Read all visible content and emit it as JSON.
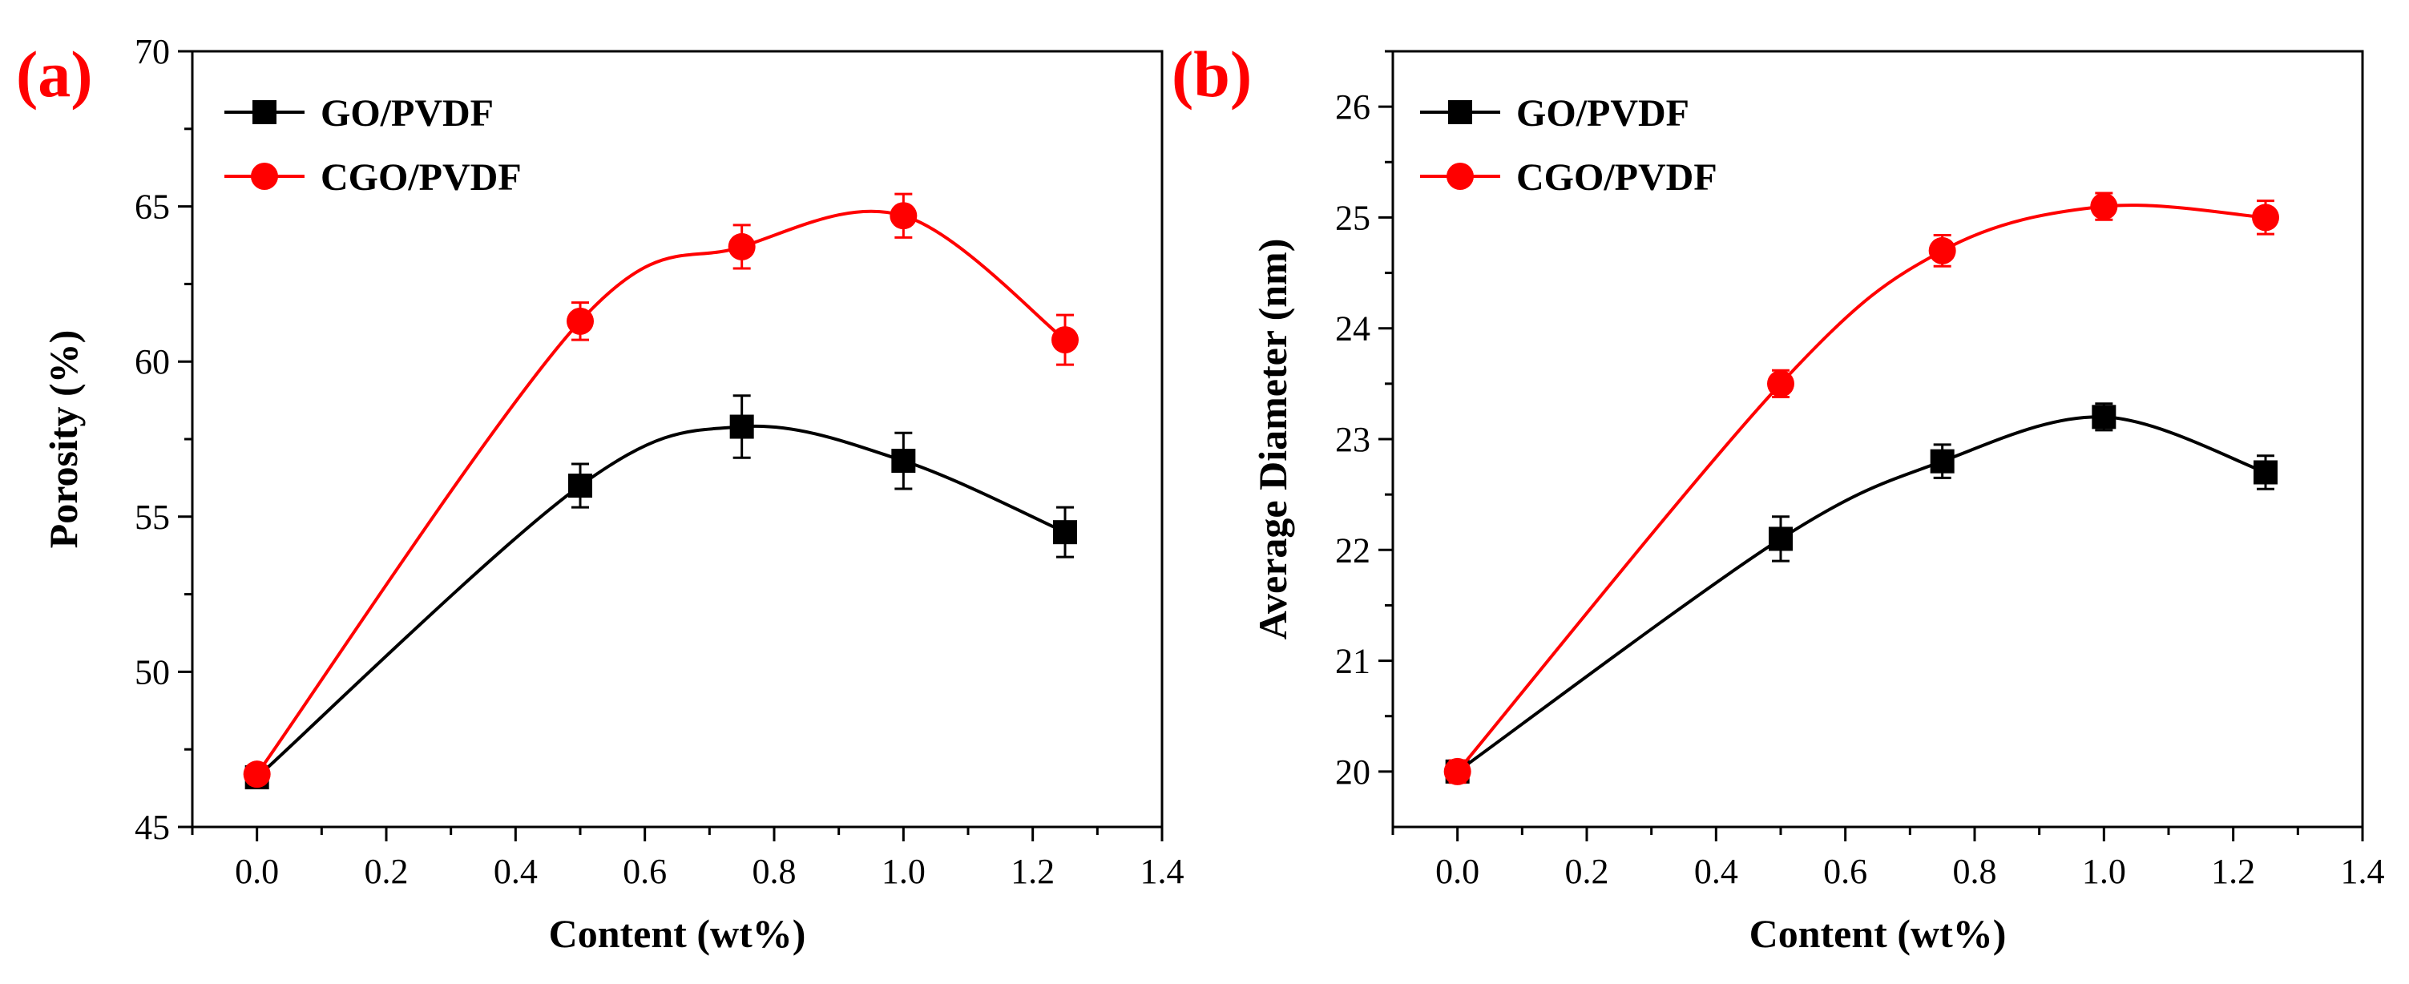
{
  "colors": {
    "go": "#000000",
    "cgo": "#ff0000",
    "panel_label": "#ff0000",
    "axis": "#000000"
  },
  "chart_data": [
    {
      "type": "line",
      "panel_label": "(a)",
      "xlabel": "Content (wt%)",
      "ylabel": "Porosity (%)",
      "xlim": [
        -0.1,
        1.4
      ],
      "ylim": [
        45,
        70
      ],
      "xticks": [
        0.0,
        0.2,
        0.4,
        0.6,
        0.8,
        1.0,
        1.2,
        1.4
      ],
      "xtick_labels": [
        "0.0",
        "0.2",
        "0.4",
        "0.6",
        "0.8",
        "1.0",
        "1.2",
        "1.4"
      ],
      "yticks": [
        45,
        50,
        55,
        60,
        65,
        70
      ],
      "ytick_labels": [
        "45",
        "50",
        "55",
        "60",
        "65",
        "70"
      ],
      "legend_position": "top-left",
      "grid": false,
      "series": [
        {
          "name": "GO/PVDF",
          "color": "#000000",
          "marker": "square",
          "x": [
            0.0,
            0.5,
            0.75,
            1.0,
            1.25
          ],
          "y": [
            46.6,
            56.0,
            57.9,
            56.8,
            54.5
          ],
          "error": [
            0.3,
            0.7,
            1.0,
            0.9,
            0.8
          ]
        },
        {
          "name": "CGO/PVDF",
          "color": "#ff0000",
          "marker": "circle",
          "x": [
            0.0,
            0.5,
            0.75,
            1.0,
            1.25
          ],
          "y": [
            46.7,
            61.3,
            63.7,
            64.7,
            60.7
          ],
          "error": [
            0.3,
            0.6,
            0.7,
            0.7,
            0.8
          ]
        }
      ]
    },
    {
      "type": "line",
      "panel_label": "(b)",
      "xlabel": "Content (wt%)",
      "ylabel": "Average Diameter (nm)",
      "xlim": [
        -0.1,
        1.4
      ],
      "ylim": [
        19.5,
        26.5
      ],
      "xticks": [
        0.0,
        0.2,
        0.4,
        0.6,
        0.8,
        1.0,
        1.2,
        1.4
      ],
      "xtick_labels": [
        "0.0",
        "0.2",
        "0.4",
        "0.6",
        "0.8",
        "1.0",
        "1.2",
        "1.4"
      ],
      "yticks": [
        20,
        21,
        22,
        23,
        24,
        25,
        26
      ],
      "ytick_labels": [
        "20",
        "21",
        "22",
        "23",
        "24",
        "25",
        "26"
      ],
      "legend_position": "top-left",
      "grid": false,
      "series": [
        {
          "name": "GO/PVDF",
          "color": "#000000",
          "marker": "square",
          "x": [
            0.0,
            0.5,
            0.75,
            1.0,
            1.25
          ],
          "y": [
            20.0,
            22.1,
            22.8,
            23.2,
            22.7
          ],
          "error": [
            0.1,
            0.2,
            0.15,
            0.12,
            0.15
          ]
        },
        {
          "name": "CGO/PVDF",
          "color": "#ff0000",
          "marker": "circle",
          "x": [
            0.0,
            0.5,
            0.75,
            1.0,
            1.25
          ],
          "y": [
            20.0,
            23.5,
            24.7,
            25.1,
            25.0
          ],
          "error": [
            0.1,
            0.12,
            0.14,
            0.12,
            0.15
          ]
        }
      ]
    }
  ]
}
